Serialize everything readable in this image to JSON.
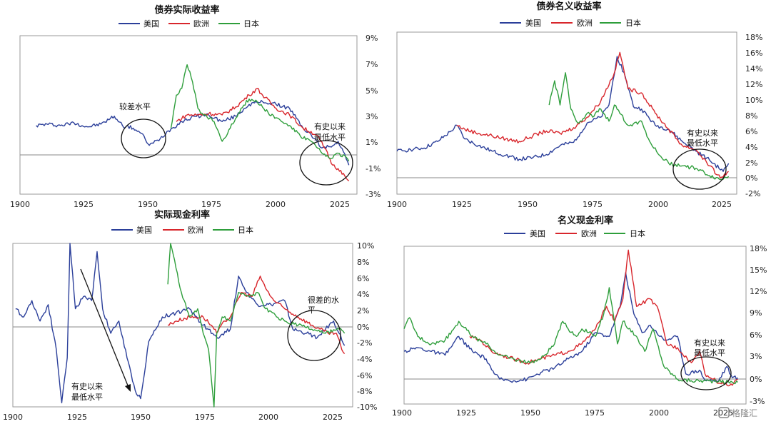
{
  "colors": {
    "us": "#2b3f9a",
    "eu": "#d8262c",
    "jp": "#2e9e3b"
  },
  "legend": [
    "美国",
    "欧洲",
    "日本"
  ],
  "watermark": "格隆汇",
  "chart_data": [
    {
      "type": "line",
      "title": "债券实际收益率",
      "xticks": [
        "1900",
        "1925",
        "1950",
        "1975",
        "2000",
        "2025"
      ],
      "xlim": [
        1900,
        2025
      ],
      "yticks": [
        "9%",
        "7%",
        "5%",
        "3%",
        "1%",
        "-1%",
        "-3%"
      ],
      "ylim": [
        -3,
        9
      ],
      "annotations": [
        "较差水平",
        "有史以来",
        "最低水平"
      ],
      "series": [
        {
          "name": "美国",
          "x": [
            1906,
            1910,
            1915,
            1920,
            1925,
            1930,
            1935,
            1938,
            1942,
            1945,
            1948,
            1952,
            1955,
            1960,
            1965,
            1970,
            1975,
            1980,
            1985,
            1990,
            1995,
            2000,
            2005,
            2008,
            2012,
            2015,
            2018,
            2020,
            2022
          ],
          "y": [
            2.2,
            2.3,
            2.2,
            2.4,
            2.1,
            2.3,
            2.9,
            2.2,
            2.0,
            1.6,
            0.7,
            1.2,
            1.8,
            2.5,
            2.9,
            3.0,
            2.5,
            2.9,
            3.8,
            4.0,
            3.8,
            3.5,
            2.0,
            1.5,
            0.5,
            0.6,
            1.0,
            0.2,
            -0.8
          ]
        },
        {
          "name": "欧洲",
          "x": [
            1958,
            1962,
            1966,
            1970,
            1975,
            1980,
            1985,
            1988,
            1990,
            1995,
            2000,
            2005,
            2010,
            2013,
            2016,
            2019,
            2021,
            2022
          ],
          "y": [
            2.5,
            3.0,
            3.0,
            3.1,
            3.0,
            3.6,
            4.5,
            5.0,
            4.5,
            3.5,
            3.0,
            2.0,
            1.5,
            0.5,
            -0.8,
            -1.2,
            -1.8,
            -2.0
          ]
        },
        {
          "name": "日本",
          "x": [
            1956,
            1958,
            1960,
            1962,
            1964,
            1966,
            1968,
            1972,
            1975,
            1978,
            1982,
            1985,
            1988,
            1992,
            1997,
            2000,
            2004,
            2008,
            2012,
            2015,
            2018,
            2021,
            2022
          ],
          "y": [
            2.0,
            4.5,
            5.0,
            6.8,
            5.5,
            3.5,
            3.0,
            2.5,
            1.0,
            2.0,
            3.5,
            4.2,
            4.0,
            3.2,
            2.5,
            2.2,
            1.4,
            1.0,
            0.1,
            -0.3,
            0.1,
            -0.2,
            -0.5
          ]
        }
      ]
    },
    {
      "type": "line",
      "title": "债券名义收益率",
      "xticks": [
        "1900",
        "1925",
        "1950",
        "1975",
        "2000",
        "2025"
      ],
      "xlim": [
        1900,
        2025
      ],
      "yticks": [
        "18%",
        "16%",
        "14%",
        "12%",
        "10%",
        "8%",
        "6%",
        "4%",
        "2%",
        "0%",
        "-2%"
      ],
      "ylim": [
        -2,
        18
      ],
      "annotations": [
        "有史以来",
        "最低水平"
      ],
      "series": [
        {
          "name": "美国",
          "x": [
            1900,
            1905,
            1910,
            1915,
            1920,
            1922,
            1925,
            1930,
            1935,
            1940,
            1945,
            1950,
            1955,
            1960,
            1965,
            1970,
            1975,
            1978,
            1981,
            1984,
            1987,
            1990,
            1995,
            2000,
            2005,
            2010,
            2015,
            2020,
            2022
          ],
          "y": [
            3.3,
            3.5,
            3.7,
            4.5,
            5.8,
            6.5,
            4.8,
            4.0,
            3.3,
            2.8,
            2.3,
            2.5,
            2.9,
            4.0,
            4.4,
            6.8,
            7.5,
            9.0,
            15.0,
            12.5,
            8.8,
            8.5,
            6.5,
            6.0,
            4.5,
            3.3,
            2.2,
            0.8,
            1.8
          ]
        },
        {
          "name": "欧洲",
          "x": [
            1922,
            1925,
            1930,
            1935,
            1940,
            1945,
            1950,
            1955,
            1960,
            1965,
            1970,
            1975,
            1980,
            1982,
            1985,
            1990,
            1995,
            2000,
            2005,
            2010,
            2015,
            2019,
            2022
          ],
          "y": [
            6.5,
            6.0,
            5.5,
            5.2,
            4.8,
            4.5,
            5.2,
            5.8,
            5.5,
            6.2,
            7.5,
            9.5,
            13.0,
            15.5,
            11.0,
            10.5,
            8.0,
            6.0,
            4.0,
            3.5,
            1.5,
            0.0,
            0.8
          ]
        },
        {
          "name": "日本",
          "x": [
            1956,
            1958,
            1960,
            1962,
            1964,
            1966,
            1968,
            1970,
            1972,
            1975,
            1978,
            1980,
            1985,
            1990,
            1993,
            1996,
            2000,
            2005,
            2010,
            2015,
            2019,
            2022
          ],
          "y": [
            9.0,
            12.0,
            9.0,
            13.0,
            8.5,
            7.0,
            7.0,
            8.0,
            7.5,
            8.5,
            7.0,
            9.0,
            6.5,
            7.0,
            4.5,
            3.0,
            1.8,
            1.5,
            1.2,
            0.3,
            -0.2,
            0.2
          ]
        }
      ]
    },
    {
      "type": "line",
      "title": "实际现金利率",
      "xticks": [
        "1900",
        "1925",
        "1950",
        "1975",
        "2000",
        "2025"
      ],
      "xlim": [
        1900,
        2025
      ],
      "yticks": [
        "10%",
        "8%",
        "6%",
        "4%",
        "2%",
        "0%",
        "-2%",
        "-4%",
        "-6%",
        "-8%",
        "-10%"
      ],
      "ylim": [
        -10,
        10
      ],
      "annotations": [
        "很差的水",
        "平",
        "有史以来",
        "最低水平"
      ],
      "series": [
        {
          "name": "美国",
          "x": [
            1901,
            1904,
            1907,
            1910,
            1913,
            1916,
            1918,
            1920,
            1921,
            1923,
            1926,
            1929,
            1931,
            1933,
            1936,
            1939,
            1942,
            1945,
            1947,
            1950,
            1955,
            1960,
            1965,
            1970,
            1975,
            1980,
            1983,
            1986,
            1990,
            1995,
            2000,
            2003,
            2008,
            2012,
            2015,
            2018,
            2020,
            2022
          ],
          "y": [
            2.0,
            1.0,
            3.0,
            0.5,
            2.5,
            -3.0,
            -9.5,
            -4.0,
            10.0,
            2.0,
            3.5,
            3.0,
            9.0,
            2.0,
            -1.0,
            0.5,
            -4.0,
            -8.0,
            -9.0,
            -2.0,
            1.0,
            1.5,
            2.0,
            0.0,
            -1.5,
            -0.5,
            6.0,
            4.0,
            2.5,
            2.5,
            3.0,
            -0.5,
            -1.0,
            -1.5,
            -0.5,
            0.5,
            -1.0,
            -2.5
          ]
        },
        {
          "name": "欧洲",
          "x": [
            1957,
            1960,
            1965,
            1970,
            1973,
            1975,
            1978,
            1980,
            1984,
            1988,
            1991,
            1993,
            1996,
            2000,
            2005,
            2010,
            2013,
            2016,
            2019,
            2021,
            2022
          ],
          "y": [
            0.0,
            0.5,
            1.0,
            1.0,
            0.0,
            -1.0,
            0.5,
            1.0,
            4.0,
            3.5,
            6.0,
            4.5,
            3.0,
            2.0,
            1.0,
            0.0,
            -0.5,
            -1.0,
            -1.0,
            -3.0,
            -3.5
          ]
        },
        {
          "name": "日本",
          "x": [
            1957,
            1958,
            1960,
            1962,
            1965,
            1968,
            1970,
            1972,
            1974,
            1975,
            1977,
            1980,
            1983,
            1987,
            1990,
            1993,
            1997,
            2000,
            2005,
            2010,
            2015,
            2020,
            2022
          ],
          "y": [
            5.0,
            10.0,
            7.0,
            4.0,
            1.0,
            2.0,
            -1.0,
            -3.0,
            -10.0,
            -1.0,
            1.0,
            0.5,
            4.0,
            3.5,
            4.0,
            2.0,
            1.0,
            0.5,
            0.0,
            -0.5,
            -1.0,
            -0.5,
            -1.0
          ]
        }
      ]
    },
    {
      "type": "line",
      "title": "名义现金利率",
      "xticks": [
        "1900",
        "1925",
        "1950",
        "1975",
        "2000",
        "2025"
      ],
      "xlim": [
        1900,
        2025
      ],
      "yticks": [
        "18%",
        "15%",
        "12%",
        "9%",
        "6%",
        "3%",
        "0%",
        "-3%"
      ],
      "ylim": [
        -3,
        18
      ],
      "annotations": [
        "有史以来",
        "最低水平"
      ],
      "series": [
        {
          "name": "美国",
          "x": [
            1900,
            1905,
            1910,
            1915,
            1920,
            1925,
            1930,
            1933,
            1935,
            1940,
            1945,
            1950,
            1955,
            1960,
            1965,
            1970,
            1975,
            1979,
            1981,
            1984,
            1987,
            1990,
            1995,
            2000,
            2003,
            2008,
            2010,
            2015,
            2018,
            2020,
            2022
          ],
          "y": [
            4.0,
            4.5,
            4.0,
            3.5,
            6.0,
            4.0,
            3.0,
            1.0,
            0.3,
            0.1,
            0.3,
            1.2,
            1.8,
            3.0,
            4.0,
            6.5,
            6.0,
            10.0,
            14.5,
            9.0,
            6.5,
            7.5,
            5.5,
            6.0,
            1.0,
            1.5,
            0.2,
            0.1,
            2.0,
            0.5,
            0.5
          ]
        },
        {
          "name": "欧洲",
          "x": [
            1924,
            1928,
            1932,
            1936,
            1940,
            1945,
            1950,
            1955,
            1960,
            1965,
            1970,
            1974,
            1977,
            1980,
            1982,
            1985,
            1990,
            1993,
            1996,
            2000,
            2005,
            2008,
            2010,
            2013,
            2016,
            2020,
            2022
          ],
          "y": [
            6.0,
            5.5,
            4.0,
            3.5,
            3.0,
            2.5,
            3.0,
            3.5,
            4.0,
            5.0,
            7.0,
            10.0,
            8.0,
            11.0,
            17.5,
            10.0,
            11.0,
            9.5,
            5.0,
            4.5,
            2.5,
            4.0,
            1.0,
            0.3,
            -0.3,
            -0.5,
            0.3
          ]
        },
        {
          "name": "日本",
          "x": [
            1900,
            1902,
            1905,
            1910,
            1915,
            1920,
            1925,
            1930,
            1935,
            1940,
            1945,
            1950,
            1955,
            1958,
            1960,
            1963,
            1965,
            1970,
            1973,
            1975,
            1978,
            1980,
            1985,
            1988,
            1991,
            1995,
            2000,
            2005,
            2010,
            2015,
            2020,
            2022
          ],
          "y": [
            7.0,
            8.5,
            6.0,
            5.0,
            5.5,
            8.0,
            6.0,
            5.0,
            3.5,
            3.0,
            2.5,
            3.0,
            5.0,
            8.0,
            7.0,
            6.0,
            7.0,
            6.0,
            9.0,
            12.5,
            5.0,
            8.0,
            6.0,
            4.0,
            7.0,
            2.0,
            0.3,
            0.1,
            0.1,
            0.0,
            -0.1,
            -0.1
          ]
        }
      ]
    }
  ]
}
